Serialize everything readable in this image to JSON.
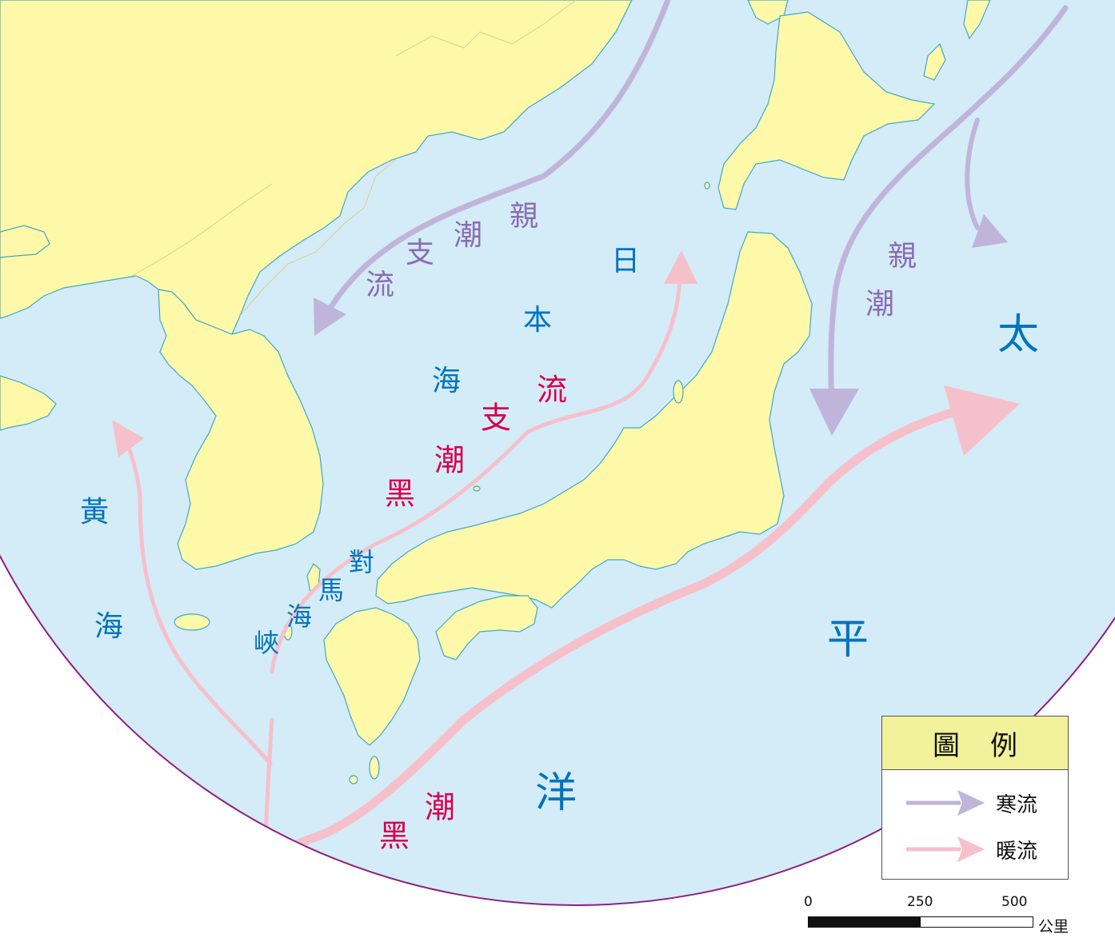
{
  "colors": {
    "sea": "#d3ecf8",
    "land": "#fdf9a9",
    "coast": "#3fa9c9",
    "border": "#d8cf8f",
    "cold_current": "#c1b4da",
    "warm_current": "#f6c0cb",
    "cold_text": "#8b6cb0",
    "warm_text": "#d8004e",
    "sea_text": "#0073bd",
    "frame": "#8e1f82",
    "legend_header": "#f1f29a"
  },
  "labels": {
    "oyashio_branch": [
      "親",
      "潮",
      "支",
      "流"
    ],
    "oyashio": [
      "親",
      "潮"
    ],
    "japan_sea": [
      "日",
      "本",
      "海"
    ],
    "tsushima_current": [
      "流",
      "支",
      "潮",
      "黑"
    ],
    "tsushima_strait": [
      "對",
      "馬",
      "海",
      "峽"
    ],
    "yellow_sea": [
      "黃",
      "海"
    ],
    "pacific_ocean": [
      "太",
      "平",
      "洋"
    ],
    "kuroshio": [
      "潮",
      "黑"
    ]
  },
  "legend": {
    "title": "圖例",
    "cold_label": "寒流",
    "warm_label": "暖流",
    "cold_icon": "cold-current-arrow-icon",
    "warm_icon": "warm-current-arrow-icon"
  },
  "scale_bar": {
    "ticks": [
      "0",
      "250",
      "500"
    ],
    "unit": "公里"
  }
}
